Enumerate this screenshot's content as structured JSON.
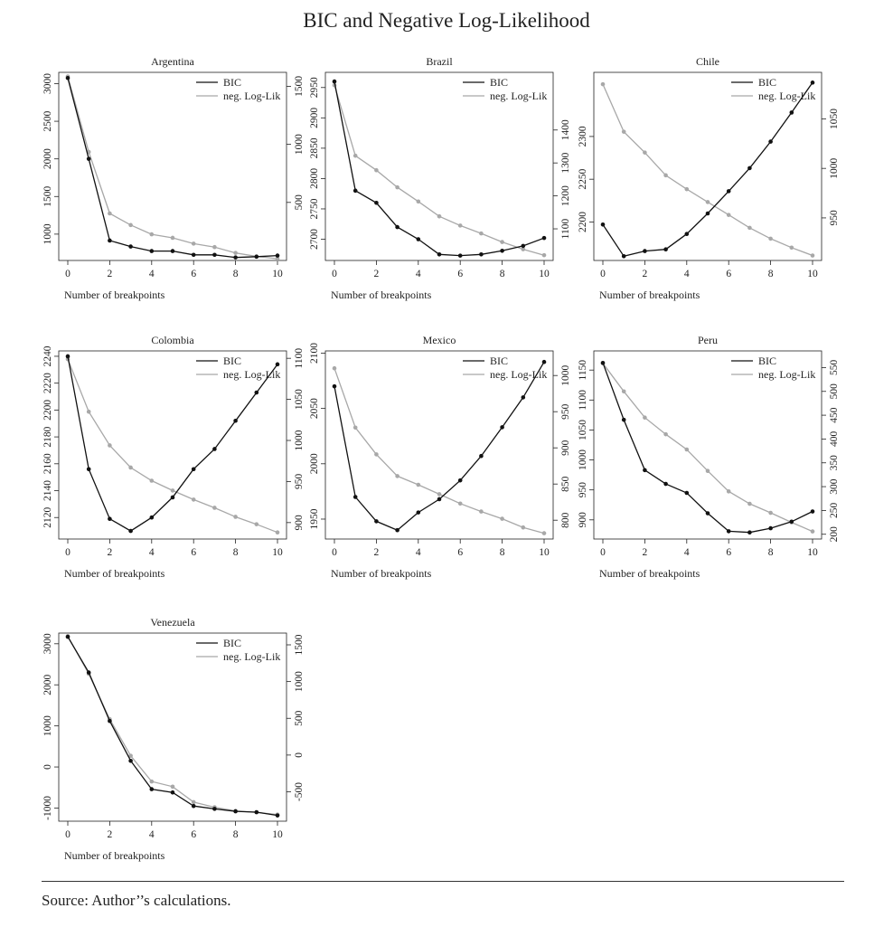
{
  "title": "BIC and Negative Log-Likelihood",
  "source": "Source: Author’’s calculations.",
  "colors": {
    "bic": "#111111",
    "neglik": "#a8a8a8",
    "axis": "#222222"
  },
  "chart_data": [
    {
      "type": "line",
      "title": "Argentina",
      "xlabel": "Number of breakpoints",
      "x": [
        0,
        1,
        2,
        3,
        4,
        5,
        6,
        7,
        8,
        9,
        10
      ],
      "xticks": [
        0,
        2,
        4,
        6,
        8,
        10
      ],
      "series": [
        {
          "name": "BIC",
          "axis": "left",
          "values": [
            3075,
            2000,
            915,
            835,
            775,
            775,
            725,
            725,
            690,
            700,
            715
          ]
        },
        {
          "name": "neg. Log-Lik",
          "axis": "right",
          "values": [
            1585,
            935,
            405,
            305,
            225,
            195,
            145,
            115,
            65,
            35,
            15
          ]
        }
      ],
      "ylim_left": [
        650,
        3150
      ],
      "yticks_left": [
        1000,
        1500,
        2000,
        2500,
        3000
      ],
      "ylim_right": [
        0,
        1620
      ],
      "yticks_right": [
        500,
        1000,
        1500
      ],
      "legend": "top-right"
    },
    {
      "type": "line",
      "title": "Brazil",
      "xlabel": "Number of breakpoints",
      "x": [
        0,
        1,
        2,
        3,
        4,
        5,
        6,
        7,
        8,
        9,
        10
      ],
      "xticks": [
        0,
        2,
        4,
        6,
        8,
        10
      ],
      "series": [
        {
          "name": "BIC",
          "axis": "left",
          "values": [
            2960,
            2780,
            2760,
            2720,
            2700,
            2675,
            2673,
            2675,
            2681,
            2689,
            2702
          ]
        },
        {
          "name": "neg. Log-Lik",
          "axis": "right",
          "values": [
            1536,
            1322,
            1278,
            1226,
            1183,
            1138,
            1110,
            1086,
            1060,
            1038,
            1020
          ]
        }
      ],
      "ylim_left": [
        2665,
        2975
      ],
      "yticks_left": [
        2700,
        2750,
        2800,
        2850,
        2900,
        2950
      ],
      "ylim_right": [
        1004,
        1575
      ],
      "yticks_right": [
        1100,
        1200,
        1300,
        1400
      ],
      "legend": "top-right"
    },
    {
      "type": "line",
      "title": "Chile",
      "xlabel": "Number of breakpoints",
      "x": [
        0,
        1,
        2,
        3,
        4,
        5,
        6,
        7,
        8,
        9,
        10
      ],
      "xticks": [
        0,
        2,
        4,
        6,
        8,
        10
      ],
      "series": [
        {
          "name": "BIC",
          "axis": "left",
          "values": [
            2197,
            2160,
            2166,
            2168,
            2186,
            2210,
            2236,
            2263,
            2294,
            2328,
            2363
          ]
        },
        {
          "name": "neg. Log-Lik",
          "axis": "right",
          "values": [
            1085,
            1037,
            1016,
            993,
            979,
            966,
            953,
            940,
            929,
            920,
            912
          ]
        }
      ],
      "ylim_left": [
        2155,
        2375
      ],
      "yticks_left": [
        2200,
        2250,
        2300
      ],
      "ylim_right": [
        907,
        1097
      ],
      "yticks_right": [
        950,
        1000,
        1050
      ],
      "legend": "top-right"
    },
    {
      "type": "line",
      "title": "Colombia",
      "xlabel": "Number of breakpoints",
      "x": [
        0,
        1,
        2,
        3,
        4,
        5,
        6,
        7,
        8,
        9,
        10
      ],
      "xticks": [
        0,
        2,
        4,
        6,
        8,
        10
      ],
      "series": [
        {
          "name": "BIC",
          "axis": "left",
          "values": [
            2240,
            2156,
            2119,
            2110,
            2120,
            2135,
            2156,
            2171,
            2192,
            2213,
            2234
          ]
        },
        {
          "name": "neg. Log-Lik",
          "axis": "right",
          "values": [
            1099,
            1035,
            994,
            967,
            951,
            939,
            928,
            918,
            907,
            898,
            888
          ]
        }
      ],
      "ylim_left": [
        2104,
        2244
      ],
      "yticks_left": [
        2120,
        2140,
        2160,
        2180,
        2200,
        2220,
        2240
      ],
      "ylim_right": [
        880,
        1109
      ],
      "yticks_right": [
        900,
        950,
        1000,
        1050,
        1100
      ],
      "legend": "top-right"
    },
    {
      "type": "line",
      "title": "Mexico",
      "xlabel": "Number of breakpoints",
      "x": [
        0,
        1,
        2,
        3,
        4,
        5,
        6,
        7,
        8,
        9,
        10
      ],
      "xticks": [
        0,
        2,
        4,
        6,
        8,
        10
      ],
      "series": [
        {
          "name": "BIC",
          "axis": "left",
          "values": [
            2070,
            1970,
            1948,
            1940,
            1956,
            1968,
            1985,
            2007,
            2033,
            2060,
            2092
          ]
        },
        {
          "name": "neg. Log-Lik",
          "axis": "right",
          "values": [
            1010,
            928,
            891,
            861,
            849,
            836,
            823,
            812,
            802,
            790,
            782
          ]
        }
      ],
      "ylim_left": [
        1932,
        2102
      ],
      "yticks_left": [
        1950,
        2000,
        2050,
        2100
      ],
      "ylim_right": [
        774,
        1034
      ],
      "yticks_right": [
        800,
        850,
        900,
        950,
        1000
      ],
      "legend": "top-right"
    },
    {
      "type": "line",
      "title": "Peru",
      "xlabel": "Number of breakpoints",
      "x": [
        0,
        1,
        2,
        3,
        4,
        5,
        6,
        7,
        8,
        9,
        10
      ],
      "xticks": [
        0,
        2,
        4,
        6,
        8,
        10
      ],
      "series": [
        {
          "name": "BIC",
          "axis": "left",
          "values": [
            1162,
            1067,
            983,
            960,
            945,
            911,
            881,
            879,
            886,
            897,
            914
          ]
        },
        {
          "name": "neg. Log-Lik",
          "axis": "right",
          "values": [
            559,
            500,
            445,
            410,
            378,
            333,
            290,
            264,
            245,
            225,
            206
          ]
        }
      ],
      "ylim_left": [
        868,
        1182
      ],
      "yticks_left": [
        900,
        950,
        1000,
        1050,
        1100,
        1150
      ],
      "ylim_right": [
        190,
        585
      ],
      "yticks_right": [
        200,
        250,
        300,
        350,
        400,
        450,
        500,
        550
      ],
      "legend": "top-right"
    },
    {
      "type": "line",
      "title": "Venezuela",
      "xlabel": "Number of breakpoints",
      "x": [
        0,
        1,
        2,
        3,
        4,
        5,
        6,
        7,
        8,
        9,
        10
      ],
      "xticks": [
        0,
        2,
        4,
        6,
        8,
        10
      ],
      "series": [
        {
          "name": "BIC",
          "axis": "left",
          "values": [
            3170,
            2300,
            1120,
            150,
            -540,
            -620,
            -950,
            -1020,
            -1080,
            -1100,
            -1180
          ]
        },
        {
          "name": "neg. Log-Lik",
          "axis": "right",
          "values": [
            1618,
            1105,
            488,
            -10,
            -360,
            -430,
            -640,
            -710,
            -760,
            -780,
            -810
          ]
        }
      ],
      "ylim_left": [
        -1320,
        3260
      ],
      "yticks_left": [
        -1000,
        0,
        1000,
        2000,
        3000
      ],
      "ylim_right": [
        -900,
        1660
      ],
      "yticks_right": [
        -500,
        0,
        500,
        1000,
        1500
      ],
      "legend": "top-right"
    }
  ]
}
